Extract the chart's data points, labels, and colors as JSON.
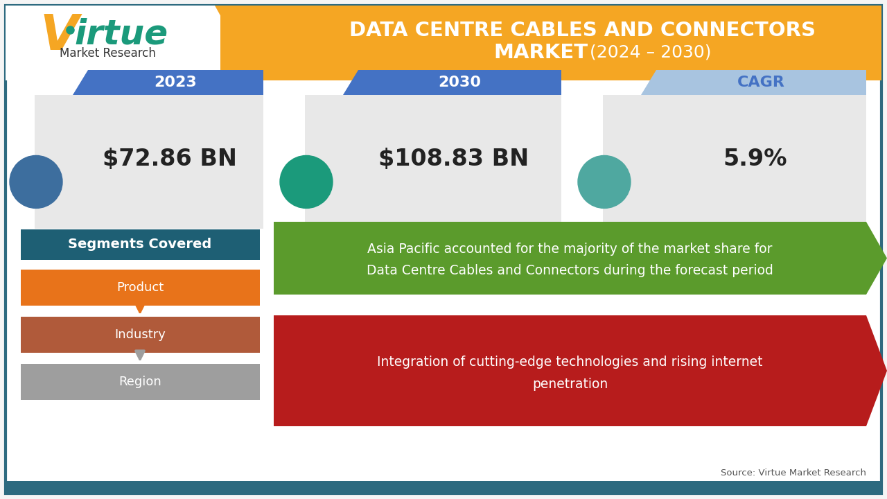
{
  "title_line1": "DATA CENTRE CABLES AND CONNECTORS",
  "title_line2_bold": "MARKET",
  "title_line2_normal": " (2024 – 2030)",
  "title_bg_color": "#F5A623",
  "bg_color": "#f5f5f5",
  "inner_bg_color": "#ffffff",
  "metric_labels": [
    "2023",
    "2030",
    "CAGR"
  ],
  "metric_values": [
    "$72.86 BN",
    "$108.83 BN",
    "5.9%"
  ],
  "metric_tab_colors": [
    "#4472C4",
    "#4472C4",
    "#A8C4E0"
  ],
  "metric_tab_text_colors": [
    "#ffffff",
    "#ffffff",
    "#4472C4"
  ],
  "metric_box_color": "#E8E8E8",
  "icon_colors": [
    "#3D6E9E",
    "#1B9A7B",
    "#4FA8A0"
  ],
  "segments_header_bg": "#1E5F74",
  "segments_label": "Segments Covered",
  "segment_items": [
    "Product",
    "Industry",
    "Region"
  ],
  "segment_colors": [
    "#E8731A",
    "#B05A3A",
    "#9E9E9E"
  ],
  "green_box_text1": "Asia Pacific accounted for the majority of the market share for",
  "green_box_text2": "Data Centre Cables and Connectors during the forecast period",
  "green_box_color": "#5B9B2C",
  "red_box_text1": "Integration of cutting-edge technologies and rising internet",
  "red_box_text2": "penetration",
  "red_box_color": "#B71C1C",
  "source_text": "Source: Virtue Market Research",
  "outer_border_color": "#2d6a7f",
  "arrow_color_orange": "#E8731A",
  "arrow_color_gray": "#9E9E9E",
  "bottom_bar_color": "#2d6a7f",
  "logo_arrow_color": "#F5A623"
}
